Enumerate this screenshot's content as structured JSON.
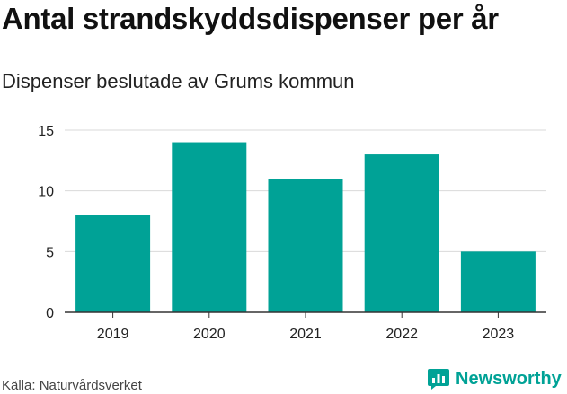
{
  "title": "Antal strandskyddsdispenser per år",
  "subtitle": "Dispenser beslutade av Grums kommun",
  "source": "Källa: Naturvårdsverket",
  "brand": {
    "name": "Newsworthy",
    "icon": "newsworthy-logo-icon",
    "color": "#00a296"
  },
  "colors": {
    "bar": "#00a296",
    "grid": "#d9d9d9",
    "axis": "#333333"
  },
  "chart_data": {
    "type": "bar",
    "title": "Antal strandskyddsdispenser per år",
    "subtitle": "Dispenser beslutade av Grums kommun",
    "categories": [
      "2019",
      "2020",
      "2021",
      "2022",
      "2023"
    ],
    "values": [
      8,
      14,
      11,
      13,
      5
    ],
    "xlabel": "",
    "ylabel": "",
    "ylim": [
      0,
      15
    ],
    "yticks": [
      "0",
      "5",
      "10",
      "15"
    ],
    "grid": true,
    "legend": "none"
  }
}
